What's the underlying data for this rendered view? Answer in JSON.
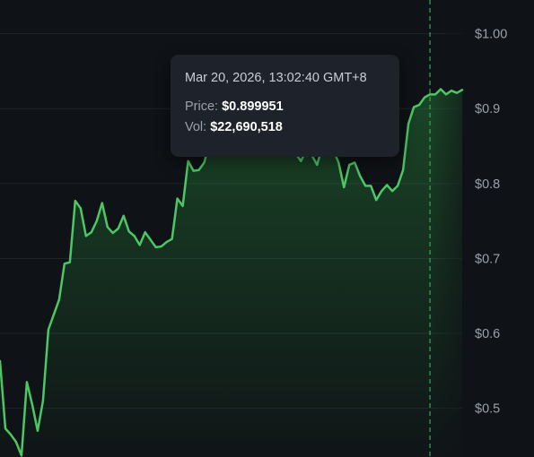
{
  "chart_data": {
    "type": "area",
    "x_unit": "time (points)",
    "y_ticks": [
      "$1.00",
      "$0.9",
      "$0.8",
      "$0.7",
      "$0.6",
      "$0.5"
    ],
    "y_tick_values": [
      1.0,
      0.9,
      0.8,
      0.7,
      0.6,
      0.5
    ],
    "ylim": [
      0.435,
      1.045
    ],
    "grid": true,
    "line_color": "#4cc764",
    "fill_color": "#2c9a42",
    "crosshair_color": "#37a852",
    "series": [
      {
        "values": [
          0.563,
          0.473,
          0.465,
          0.455,
          0.437,
          0.535,
          0.505,
          0.47,
          0.51,
          0.605,
          0.625,
          0.645,
          0.693,
          0.695,
          0.777,
          0.767,
          0.73,
          0.735,
          0.75,
          0.774,
          0.742,
          0.734,
          0.74,
          0.757,
          0.736,
          0.73,
          0.718,
          0.735,
          0.725,
          0.715,
          0.716,
          0.722,
          0.726,
          0.78,
          0.77,
          0.83,
          0.817,
          0.818,
          0.828,
          0.855,
          0.87,
          0.882,
          0.89,
          0.892,
          0.888,
          0.88,
          0.885,
          0.893,
          0.895,
          0.89,
          0.88,
          0.87,
          0.86,
          0.85,
          0.845,
          0.84,
          0.83,
          0.845,
          0.838,
          0.825,
          0.85,
          0.87,
          0.845,
          0.828,
          0.795,
          0.825,
          0.828,
          0.81,
          0.797,
          0.797,
          0.778,
          0.79,
          0.798,
          0.79,
          0.797,
          0.818,
          0.88,
          0.902,
          0.905,
          0.915,
          0.919,
          0.919,
          0.926,
          0.919,
          0.924,
          0.921,
          0.925
        ],
        "crosshair_index": 80
      }
    ]
  },
  "tooltip": {
    "time": "Mar 20, 2026, 13:02:40 GMT+8",
    "price_label": "Price:",
    "price_value": "$0.899951",
    "vol_label": "Vol:",
    "vol_value": "$22,690,518"
  }
}
